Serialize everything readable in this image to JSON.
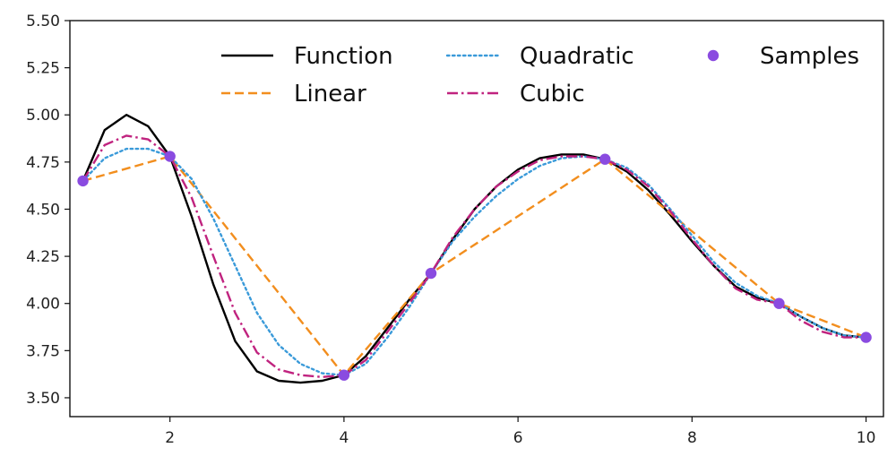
{
  "chart_data": {
    "type": "line",
    "title": "",
    "xlabel": "",
    "ylabel": "",
    "xlim": [
      0.85,
      10.2
    ],
    "ylim": [
      3.4,
      5.5
    ],
    "grid": false,
    "legend_position": "top",
    "x_ticks": [
      2,
      4,
      6,
      8,
      10
    ],
    "x_tick_labels": [
      "2",
      "4",
      "6",
      "8",
      "10"
    ],
    "y_ticks": [
      3.5,
      3.75,
      4.0,
      4.25,
      4.5,
      4.75,
      5.0,
      5.25,
      5.5
    ],
    "y_tick_labels": [
      "3.50",
      "3.75",
      "4.00",
      "4.25",
      "4.50",
      "4.75",
      "5.00",
      "5.25",
      "5.50"
    ],
    "series": [
      {
        "name": "Function",
        "color": "#000000",
        "style": "solid",
        "x": [
          1.0,
          1.25,
          1.5,
          1.75,
          2.0,
          2.25,
          2.5,
          2.75,
          3.0,
          3.25,
          3.5,
          3.75,
          4.0,
          4.25,
          4.5,
          4.75,
          5.0,
          5.25,
          5.5,
          5.75,
          6.0,
          6.25,
          6.5,
          6.75,
          7.0,
          7.25,
          7.5,
          7.75,
          8.0,
          8.25,
          8.5,
          8.75,
          9.0,
          9.25,
          9.5,
          9.75,
          10.0
        ],
        "y": [
          4.65,
          4.92,
          5.0,
          4.94,
          4.78,
          4.46,
          4.1,
          3.8,
          3.64,
          3.59,
          3.58,
          3.59,
          3.62,
          3.72,
          3.87,
          4.02,
          4.16,
          4.34,
          4.5,
          4.62,
          4.71,
          4.77,
          4.79,
          4.79,
          4.765,
          4.7,
          4.6,
          4.47,
          4.33,
          4.2,
          4.09,
          4.03,
          4.0,
          3.93,
          3.87,
          3.83,
          3.82
        ]
      },
      {
        "name": "Linear",
        "color": "#f28e1e",
        "style": "dashed",
        "x": [
          1,
          2,
          4,
          5,
          7,
          9,
          10
        ],
        "y": [
          4.65,
          4.78,
          3.62,
          4.16,
          4.765,
          4.0,
          3.82
        ]
      },
      {
        "name": "Quadratic",
        "color": "#3a9ad9",
        "style": "dotted",
        "x": [
          1.0,
          1.25,
          1.5,
          1.75,
          2.0,
          2.25,
          2.5,
          2.75,
          3.0,
          3.25,
          3.5,
          3.75,
          4.0,
          4.25,
          4.5,
          4.75,
          5.0,
          5.25,
          5.5,
          5.75,
          6.0,
          6.25,
          6.5,
          6.75,
          7.0,
          7.25,
          7.5,
          7.75,
          8.0,
          8.25,
          8.5,
          8.75,
          9.0,
          9.25,
          9.5,
          9.75,
          10.0
        ],
        "y": [
          4.65,
          4.77,
          4.82,
          4.82,
          4.78,
          4.66,
          4.45,
          4.2,
          3.95,
          3.78,
          3.68,
          3.63,
          3.62,
          3.68,
          3.82,
          3.98,
          4.16,
          4.33,
          4.46,
          4.57,
          4.66,
          4.73,
          4.77,
          4.78,
          4.765,
          4.72,
          4.63,
          4.5,
          4.36,
          4.22,
          4.11,
          4.04,
          4.0,
          3.93,
          3.87,
          3.83,
          3.82
        ]
      },
      {
        "name": "Cubic",
        "color": "#c0237f",
        "style": "dashdot",
        "x": [
          1.0,
          1.25,
          1.5,
          1.75,
          2.0,
          2.25,
          2.5,
          2.75,
          3.0,
          3.25,
          3.5,
          3.75,
          4.0,
          4.25,
          4.5,
          4.75,
          5.0,
          5.25,
          5.5,
          5.75,
          6.0,
          6.25,
          6.5,
          6.75,
          7.0,
          7.25,
          7.5,
          7.75,
          8.0,
          8.25,
          8.5,
          8.75,
          9.0,
          9.25,
          9.5,
          9.75,
          10.0
        ],
        "y": [
          4.65,
          4.84,
          4.89,
          4.87,
          4.78,
          4.56,
          4.25,
          3.95,
          3.74,
          3.65,
          3.62,
          3.61,
          3.62,
          3.7,
          3.85,
          4.0,
          4.16,
          4.35,
          4.5,
          4.62,
          4.7,
          4.76,
          4.78,
          4.78,
          4.765,
          4.71,
          4.62,
          4.49,
          4.34,
          4.2,
          4.08,
          4.02,
          4.0,
          3.91,
          3.85,
          3.82,
          3.82
        ]
      },
      {
        "name": "Samples",
        "color": "#8a4be0",
        "style": "markers",
        "x": [
          1,
          2,
          4,
          5,
          7,
          9,
          10
        ],
        "y": [
          4.65,
          4.78,
          3.62,
          4.16,
          4.765,
          4.0,
          3.82
        ]
      }
    ]
  }
}
